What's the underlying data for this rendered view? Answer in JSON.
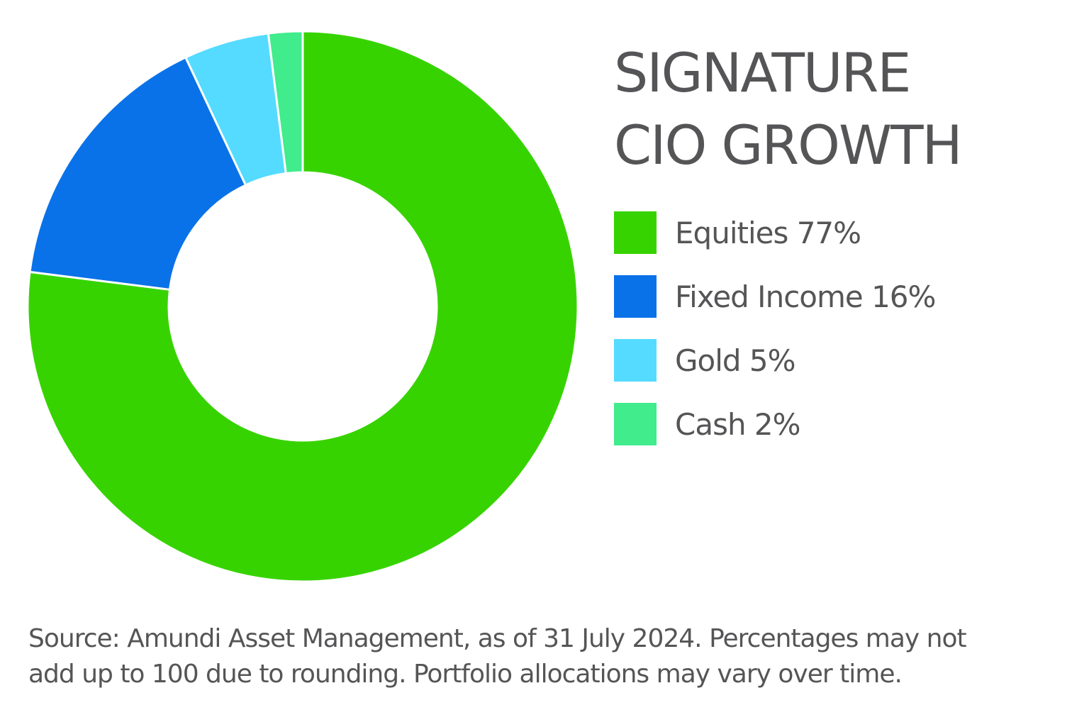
{
  "chart_data": {
    "type": "pie",
    "variant": "donut",
    "title_lines": [
      "SIGNATURE",
      "CIO GROWTH"
    ],
    "categories": [
      "Equities",
      "Fixed Income",
      "Gold",
      "Cash"
    ],
    "values": [
      77,
      16,
      5,
      2
    ],
    "unit": "%",
    "colors": [
      "#37d300",
      "#0a72e8",
      "#55dbff",
      "#40ec8c"
    ],
    "legend_labels": [
      "Equities 77%",
      "Fixed Income 16%",
      "Gold 5%",
      "Cash 2%"
    ],
    "legend_placement": "right",
    "start": "top",
    "direction": "clockwise"
  },
  "source_lines": [
    "Source: Amundi Asset Management, as of 31 July 2024. Percentages may not",
    "add up to 100 due to rounding. Portfolio allocations may vary over time."
  ]
}
